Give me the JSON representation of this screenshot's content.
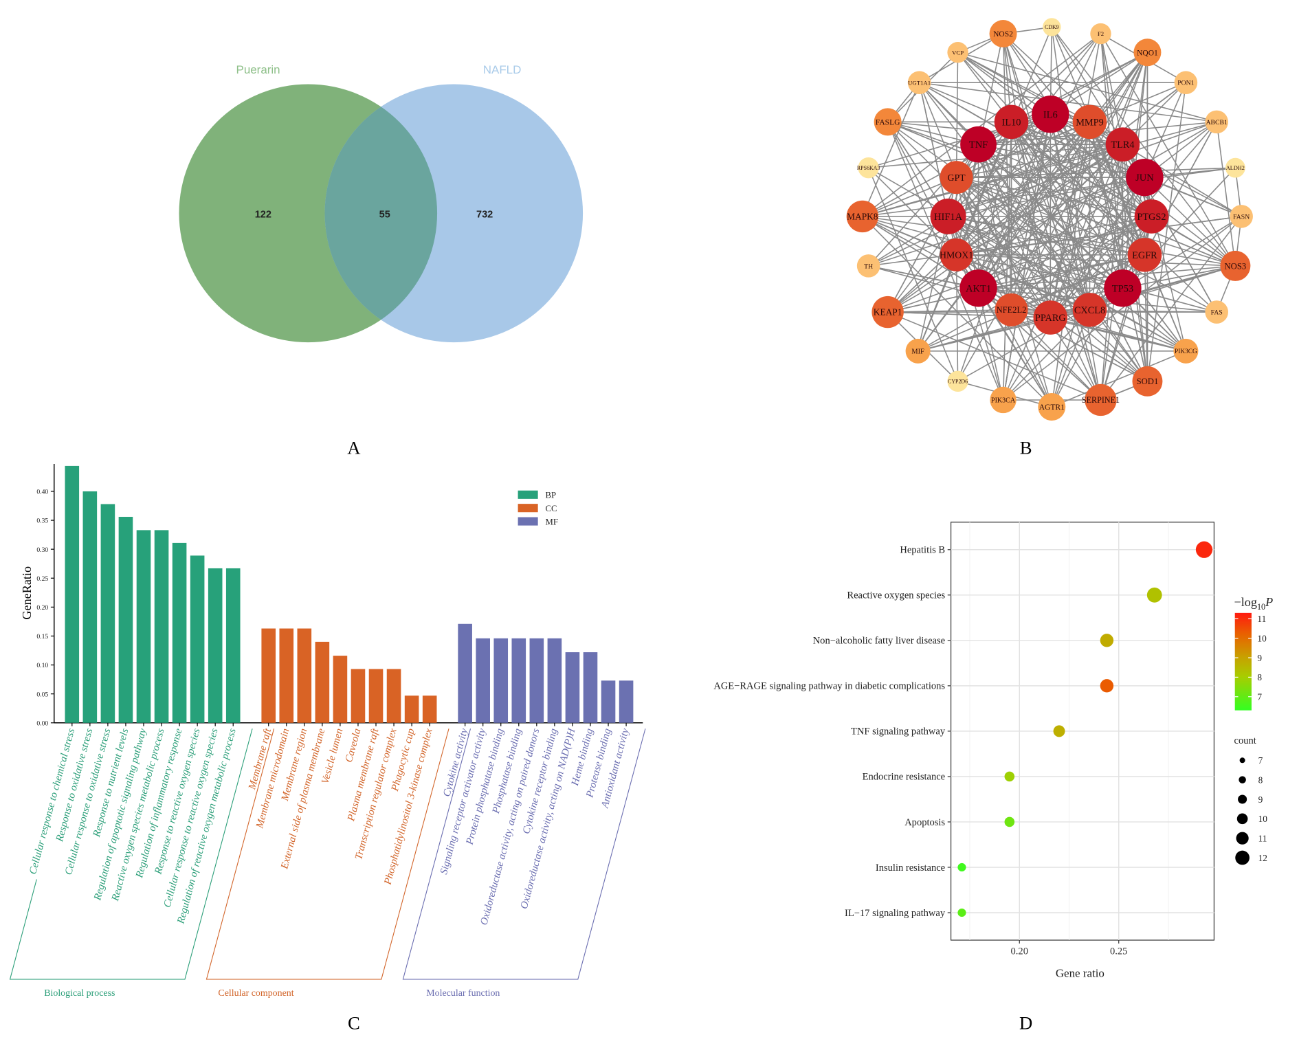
{
  "panels": {
    "a": "A",
    "b": "B",
    "c": "C",
    "d": "D"
  },
  "venn": {
    "set_a": {
      "label": "Puerarin",
      "color": "#80b27a",
      "label_color": "#8fc08a"
    },
    "set_b": {
      "label": "NAFLD",
      "color": "#a8c8e8",
      "label_color": "#a9cbe9"
    },
    "overlap_color": "#6aa59e",
    "only_a": "122",
    "both": "55",
    "only_b": "732"
  },
  "network": {
    "edge_color": "#8a8a8a",
    "tier_colors": [
      "#be0026",
      "#cb1e27",
      "#d63529",
      "#df4d2b",
      "#e8632f",
      "#f3873a",
      "#f8a24c",
      "#fcc073",
      "#fde49b"
    ],
    "nodes": [
      {
        "id": "NOS2",
        "tier": 6
      },
      {
        "id": "CDK9",
        "tier": 9
      },
      {
        "id": "F2",
        "tier": 8
      },
      {
        "id": "NQO1",
        "tier": 6
      },
      {
        "id": "VCP",
        "tier": 8
      },
      {
        "id": "UGT1A1",
        "tier": 8
      },
      {
        "id": "PON1",
        "tier": 8
      },
      {
        "id": "FASLG",
        "tier": 6
      },
      {
        "id": "ABCB1",
        "tier": 8
      },
      {
        "id": "RPS6KA3",
        "tier": 9
      },
      {
        "id": "ALDH2",
        "tier": 9
      },
      {
        "id": "MAPK8",
        "tier": 5
      },
      {
        "id": "FASN",
        "tier": 8
      },
      {
        "id": "TH",
        "tier": 8
      },
      {
        "id": "NOS3",
        "tier": 5
      },
      {
        "id": "KEAP1",
        "tier": 5
      },
      {
        "id": "FAS",
        "tier": 8
      },
      {
        "id": "MIF",
        "tier": 7
      },
      {
        "id": "PIK3CG",
        "tier": 7
      },
      {
        "id": "CYP2D6",
        "tier": 9
      },
      {
        "id": "SOD1",
        "tier": 5
      },
      {
        "id": "PIK3CA",
        "tier": 7
      },
      {
        "id": "AGTR1",
        "tier": 7
      },
      {
        "id": "SERPINE1",
        "tier": 5
      },
      {
        "id": "IL6",
        "tier": 1
      },
      {
        "id": "IL10",
        "tier": 2
      },
      {
        "id": "MMP9",
        "tier": 4
      },
      {
        "id": "TNF",
        "tier": 1
      },
      {
        "id": "TLR4",
        "tier": 2
      },
      {
        "id": "GPT",
        "tier": 4
      },
      {
        "id": "JUN",
        "tier": 1
      },
      {
        "id": "HIF1A",
        "tier": 2
      },
      {
        "id": "PTGS2",
        "tier": 2
      },
      {
        "id": "HMOX1",
        "tier": 3
      },
      {
        "id": "EGFR",
        "tier": 3
      },
      {
        "id": "AKT1",
        "tier": 1
      },
      {
        "id": "TP53",
        "tier": 1
      },
      {
        "id": "NFE2L2",
        "tier": 4
      },
      {
        "id": "PPARG",
        "tier": 3
      },
      {
        "id": "CXCL8",
        "tier": 3
      }
    ]
  },
  "chart_data": [
    {
      "type": "bar",
      "ylabel": "GeneRatio",
      "ylim": [
        0,
        0.445
      ],
      "yticks": [
        "0.00",
        "0.05",
        "0.10",
        "0.15",
        "0.20",
        "0.25",
        "0.30",
        "0.35",
        "0.40"
      ],
      "legend_position": "top-right",
      "groups": [
        {
          "name": "BP",
          "category_label": "Biological process",
          "color": "#27a17a",
          "text_color": "#2a9e78",
          "labels": [
            "Cellular response to chemical stress",
            "Response to oxidative stress",
            "Cellular response to oxidative stress",
            "Response to nutrient levels",
            "Regulation of apoptotic signaling pathway",
            "Reactive oxygen species metabolic process",
            "Regulation of inflammatory response",
            "Response to reactive oxygen species",
            "Cellular response to reactive oxygen species",
            "Regulation of reactive oxygen metabolic process"
          ],
          "values": [
            0.444,
            0.4,
            0.378,
            0.356,
            0.333,
            0.333,
            0.311,
            0.289,
            0.267,
            0.267
          ]
        },
        {
          "name": "CC",
          "category_label": "Cellular component",
          "color": "#d96325",
          "text_color": "#d2652a",
          "labels": [
            "Membrane raft",
            "Membrane microdomain",
            "Membrane region",
            "External side of plasma membrane",
            "Vesicle lumen",
            "Caveola",
            "Plasma membrane raft",
            "Transcription regulator complex",
            "Phagocytic cup",
            "Phosphatidylinositol 3-kinase complex"
          ],
          "values": [
            0.163,
            0.163,
            0.163,
            0.14,
            0.116,
            0.093,
            0.093,
            0.093,
            0.047,
            0.047
          ]
        },
        {
          "name": "MF",
          "category_label": "Molecular function",
          "color": "#6b71b1",
          "text_color": "#6a6db0",
          "labels": [
            "Cytokine activity",
            "Signaling receptor activator activity",
            "Protein phosphatase binding",
            "Phosphatase binding",
            "Oxidoreductase activity, acting on paired donors",
            "Cytokine receptor binding",
            "Oxidoreductase activity, acting on NAD(P)H",
            "Heme binding",
            "Protease binding",
            "Antioxidant activity"
          ],
          "values": [
            0.171,
            0.146,
            0.146,
            0.146,
            0.146,
            0.146,
            0.122,
            0.122,
            0.073,
            0.073
          ]
        }
      ]
    },
    {
      "type": "scatter",
      "xlabel": "Gene ratio",
      "xlim": [
        0.1655,
        0.298
      ],
      "xticks": [
        "0.20",
        "0.25"
      ],
      "grid": true,
      "categories": [
        "Hepatitis B",
        "Reactive oxygen species",
        "Non−alcoholic fatty liver disease",
        "AGE−RAGE signaling pathway in diabetic complications",
        "TNF signaling pathway",
        "Endocrine resistance",
        "Apoptosis",
        "Insulin resistance",
        "IL−17 signaling pathway"
      ],
      "gene_ratio": [
        0.293,
        0.268,
        0.244,
        0.244,
        0.22,
        0.195,
        0.195,
        0.171,
        0.171
      ],
      "count": [
        12,
        11,
        10,
        10,
        9,
        8,
        8,
        7,
        7
      ],
      "neg_log10_p": [
        11.1,
        8.3,
        8.8,
        10.3,
        8.7,
        7.9,
        7.2,
        6.5,
        6.9
      ],
      "color_legend": {
        "title_main": "−log",
        "title_sub": "10",
        "title_var": "P",
        "ticks": [
          7,
          8,
          9,
          10,
          11
        ],
        "range": [
          6.3,
          11.3
        ],
        "low_color": "#33ff22",
        "mid_color": "#b8c800",
        "high_color": "#ff1a10"
      },
      "size_legend": {
        "title": "count",
        "ticks": [
          7,
          8,
          9,
          10,
          11,
          12
        ]
      }
    }
  ]
}
